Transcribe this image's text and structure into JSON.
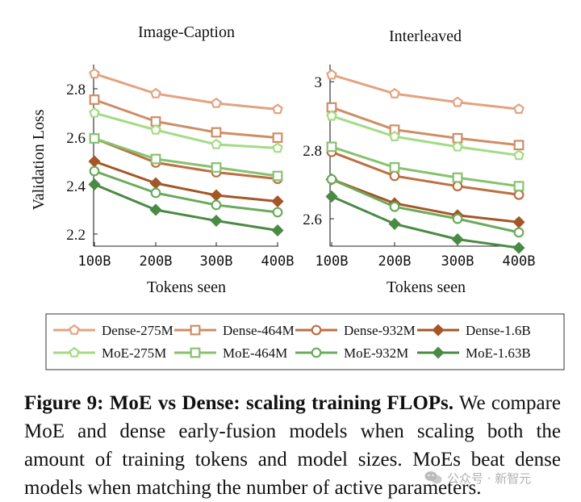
{
  "colors": {
    "dense_275m": "#e3a381",
    "dense_464m": "#cf8d66",
    "dense_932m": "#bc6f42",
    "dense_1_6b": "#a45626",
    "moe_275m": "#a3db86",
    "moe_464m": "#86c26e",
    "moe_932m": "#6bab5c",
    "moe_1_63b": "#4b8a45"
  },
  "chart_data": [
    {
      "type": "line",
      "title": "Image-Caption",
      "xlabel": "Tokens seen",
      "ylabel": "Validation Loss",
      "categories": [
        "100B",
        "200B",
        "300B",
        "400B"
      ],
      "ylim": [
        2.15,
        2.9
      ],
      "yticks": [
        2.2,
        2.4,
        2.6,
        2.8
      ],
      "ytick_labels": [
        "2.2",
        "2.4",
        "2.6",
        "2.8"
      ],
      "series": [
        {
          "name": "Dense-275M",
          "values": [
            2.862,
            2.78,
            2.74,
            2.715
          ]
        },
        {
          "name": "Dense-464M",
          "values": [
            2.755,
            2.665,
            2.62,
            2.598
          ]
        },
        {
          "name": "Dense-932M",
          "values": [
            2.595,
            2.495,
            2.455,
            2.428
          ]
        },
        {
          "name": "Dense-1.6B",
          "values": [
            2.5,
            2.41,
            2.36,
            2.335
          ]
        },
        {
          "name": "MoE-275M",
          "values": [
            2.7,
            2.63,
            2.57,
            2.555
          ]
        },
        {
          "name": "MoE-464M",
          "values": [
            2.595,
            2.51,
            2.475,
            2.44
          ]
        },
        {
          "name": "MoE-932M",
          "values": [
            2.46,
            2.37,
            2.32,
            2.29
          ]
        },
        {
          "name": "MoE-1.63B",
          "values": [
            2.405,
            2.3,
            2.255,
            2.215
          ]
        }
      ]
    },
    {
      "type": "line",
      "title": "Interleaved",
      "xlabel": "Tokens seen",
      "ylabel": "",
      "categories": [
        "100B",
        "200B",
        "300B",
        "400B"
      ],
      "ylim": [
        2.52,
        3.05
      ],
      "yticks": [
        2.6,
        2.8,
        3.0
      ],
      "ytick_labels": [
        "2.6",
        "2.8",
        "3"
      ],
      "series": [
        {
          "name": "Dense-275M",
          "values": [
            3.02,
            2.965,
            2.94,
            2.92
          ]
        },
        {
          "name": "Dense-464M",
          "values": [
            2.925,
            2.86,
            2.835,
            2.815
          ]
        },
        {
          "name": "Dense-932M",
          "values": [
            2.795,
            2.725,
            2.695,
            2.67
          ]
        },
        {
          "name": "Dense-1.6B",
          "values": [
            2.715,
            2.645,
            2.61,
            2.59
          ]
        },
        {
          "name": "MoE-275M",
          "values": [
            2.9,
            2.84,
            2.81,
            2.785
          ]
        },
        {
          "name": "MoE-464M",
          "values": [
            2.81,
            2.75,
            2.72,
            2.695
          ]
        },
        {
          "name": "MoE-932M",
          "values": [
            2.715,
            2.635,
            2.6,
            2.56
          ]
        },
        {
          "name": "MoE-1.63B",
          "values": [
            2.665,
            2.585,
            2.54,
            2.515
          ]
        }
      ]
    }
  ],
  "legend": {
    "placement": "bottom",
    "items": [
      {
        "label": "Dense-275M",
        "color": "#e3a381",
        "marker": "pentagon"
      },
      {
        "label": "Dense-464M",
        "color": "#cf8d66",
        "marker": "square"
      },
      {
        "label": "Dense-932M",
        "color": "#bc6f42",
        "marker": "circle"
      },
      {
        "label": "Dense-1.6B",
        "color": "#a45626",
        "marker": "diamond"
      },
      {
        "label": "MoE-275M",
        "color": "#a3db86",
        "marker": "pentagon"
      },
      {
        "label": "MoE-464M",
        "color": "#86c26e",
        "marker": "square"
      },
      {
        "label": "MoE-932M",
        "color": "#6bab5c",
        "marker": "circle"
      },
      {
        "label": "MoE-1.63B",
        "color": "#4b8a45",
        "marker": "diamond"
      }
    ]
  },
  "caption": {
    "lead": "Figure 9: MoE vs Dense: scaling training FLOPs.",
    "body": " We compare MoE and dense early-fusion models when scaling both the amount of training tokens and model sizes. MoEs beat dense models when matching the number of active parameters."
  },
  "watermark": {
    "text": "公众号 · 新智元",
    "icon": "wechat-icon"
  }
}
